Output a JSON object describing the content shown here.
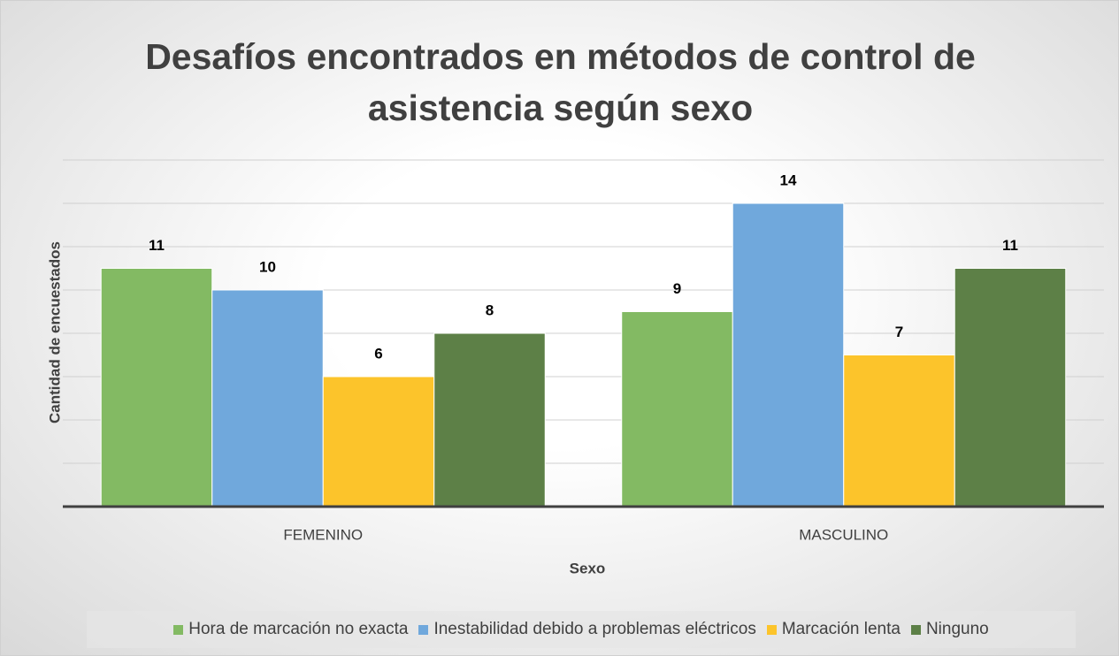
{
  "chart_data": {
    "type": "bar",
    "title": "Desafíos encontrados en métodos de control de asistencia según sexo",
    "y_label": "Cantidad de encuestados",
    "x_label": "Sexo",
    "categories": [
      "FEMENINO",
      "MASCULINO"
    ],
    "series": [
      {
        "name": "Hora de marcación no exacta",
        "color": "#83ba63",
        "values": [
          11,
          9
        ]
      },
      {
        "name": "Inestabilidad debido a problemas eléctricos",
        "color": "#70a8dc",
        "values": [
          10,
          14
        ]
      },
      {
        "name": "Marcación lenta",
        "color": "#fcc42b",
        "values": [
          6,
          7
        ]
      },
      {
        "name": "Ninguno",
        "color": "#5d8047",
        "values": [
          8,
          11
        ]
      }
    ],
    "ylim": [
      0,
      16
    ],
    "yticks": [
      0,
      2,
      4,
      6,
      8,
      10,
      12,
      14,
      16
    ],
    "grid": true,
    "legend": "bottom"
  }
}
